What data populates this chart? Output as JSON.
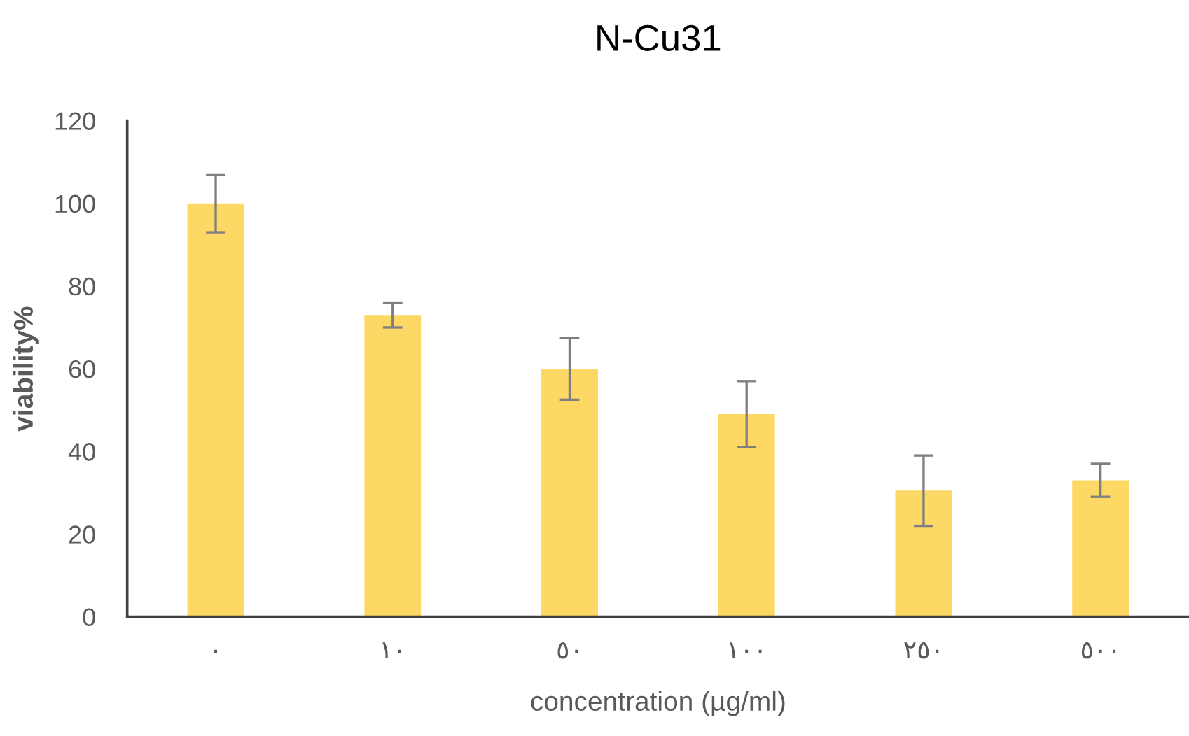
{
  "chart_data": {
    "type": "bar",
    "title": "N-Cu31",
    "xlabel": "concentration (µg/ml)",
    "ylabel": "viability%",
    "categories": [
      "٠",
      "١٠",
      "٥٠",
      "١٠٠",
      "٢٥٠",
      "٥٠٠"
    ],
    "values": [
      100,
      73,
      60,
      49,
      30.5,
      33
    ],
    "errors": [
      7,
      3,
      7.5,
      8,
      8.5,
      4
    ],
    "color": "#fdd865",
    "ylim": [
      0,
      120
    ],
    "yticks": [
      0,
      20,
      40,
      60,
      80,
      100,
      120
    ],
    "grid": false,
    "legend": false
  }
}
